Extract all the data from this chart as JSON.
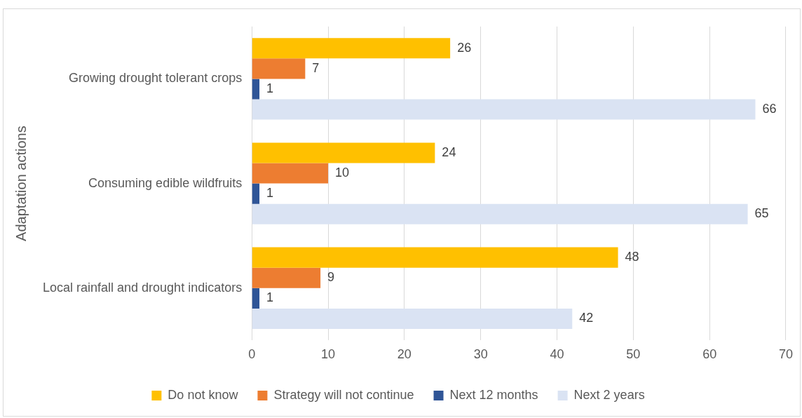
{
  "chart_data": {
    "type": "bar",
    "orientation": "horizontal",
    "ylabel": "Adaptation actions",
    "categories": [
      "Growing drought tolerant crops",
      "Consuming edible wildfruits",
      "Local rainfall and drought indicators"
    ],
    "series": [
      {
        "name": "Do not know",
        "color": "#ffc000",
        "values": [
          26,
          24,
          48
        ]
      },
      {
        "name": "Strategy will not continue",
        "color": "#ed7d31",
        "values": [
          7,
          10,
          9
        ]
      },
      {
        "name": "Next 12 months",
        "color": "#2f5597",
        "values": [
          1,
          1,
          1
        ]
      },
      {
        "name": "Next 2 years",
        "color": "#dae3f3",
        "values": [
          66,
          65,
          42
        ]
      }
    ],
    "xlim": [
      0,
      70
    ],
    "xticks": [
      0,
      10,
      20,
      30,
      40,
      50,
      60,
      70
    ],
    "grid": "x",
    "legend": "bottom",
    "data_labels": true
  }
}
